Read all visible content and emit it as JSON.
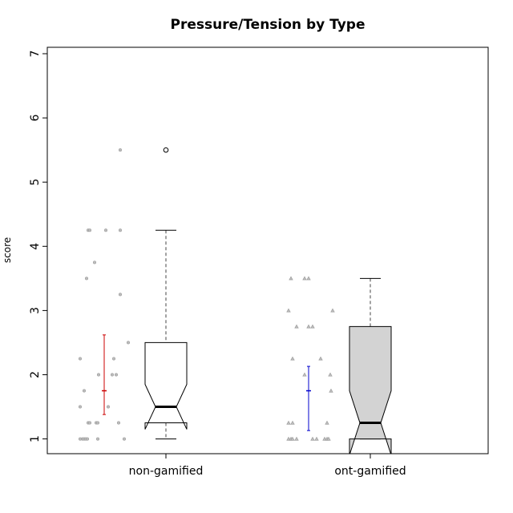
{
  "chart_data": {
    "type": "boxplot",
    "title": "Pressure/Tension by Type",
    "xlabel": "",
    "ylabel": "score",
    "ylim": [
      0.77,
      7.1
    ],
    "yticks": [
      1,
      2,
      3,
      4,
      5,
      6,
      7
    ],
    "grid": false,
    "categories": [
      "non-gamified",
      "ont-gamified"
    ],
    "series": [
      {
        "category": "non-gamified",
        "box_color": "#ffffff",
        "ci_color": "#cc0000",
        "point_marker": "circle",
        "boxplot": {
          "whisker_low": 1.0,
          "q1": 1.25,
          "median": 1.5,
          "q3": 2.5,
          "whisker_high": 4.25,
          "notch_low": 1.15,
          "notch_high": 1.85,
          "outliers": [
            5.5
          ]
        },
        "mean_ci": {
          "mean": 1.75,
          "low": 1.38,
          "high": 2.62
        },
        "points": [
          {
            "x": -0.3,
            "y": 1.0
          },
          {
            "x": -0.27,
            "y": 1.0
          },
          {
            "x": -0.25,
            "y": 1.0
          },
          {
            "x": -0.23,
            "y": 1.0
          },
          {
            "x": -0.21,
            "y": 1.0
          },
          {
            "x": -0.08,
            "y": 1.0
          },
          {
            "x": 0.25,
            "y": 1.0
          },
          {
            "x": -0.2,
            "y": 1.25
          },
          {
            "x": -0.18,
            "y": 1.25
          },
          {
            "x": -0.1,
            "y": 1.25
          },
          {
            "x": -0.08,
            "y": 1.25
          },
          {
            "x": 0.18,
            "y": 1.25
          },
          {
            "x": -0.3,
            "y": 1.5
          },
          {
            "x": 0.05,
            "y": 1.5
          },
          {
            "x": -0.25,
            "y": 1.75
          },
          {
            "x": -0.07,
            "y": 2.0
          },
          {
            "x": 0.1,
            "y": 2.0
          },
          {
            "x": 0.15,
            "y": 2.0
          },
          {
            "x": -0.3,
            "y": 2.25
          },
          {
            "x": 0.12,
            "y": 2.25
          },
          {
            "x": 0.3,
            "y": 2.5
          },
          {
            "x": 0.2,
            "y": 3.25
          },
          {
            "x": -0.22,
            "y": 3.5
          },
          {
            "x": -0.12,
            "y": 3.75
          },
          {
            "x": -0.2,
            "y": 4.25
          },
          {
            "x": -0.18,
            "y": 4.25
          },
          {
            "x": 0.02,
            "y": 4.25
          },
          {
            "x": 0.2,
            "y": 4.25
          },
          {
            "x": 0.2,
            "y": 5.5
          }
        ]
      },
      {
        "category": "ont-gamified",
        "box_color": "#d3d3d3",
        "ci_color": "#0000cc",
        "point_marker": "triangle",
        "boxplot": {
          "whisker_low": 1.0,
          "q1": 1.0,
          "median": 1.25,
          "q3": 2.75,
          "whisker_high": 3.5,
          "notch_low": 0.75,
          "notch_high": 1.75
        },
        "mean_ci": {
          "mean": 1.75,
          "low": 1.13,
          "high": 2.13
        },
        "points": [
          {
            "x": -0.25,
            "y": 1.0
          },
          {
            "x": -0.22,
            "y": 1.0
          },
          {
            "x": -0.2,
            "y": 1.0
          },
          {
            "x": -0.15,
            "y": 1.0
          },
          {
            "x": 0.05,
            "y": 1.0
          },
          {
            "x": 0.1,
            "y": 1.0
          },
          {
            "x": 0.2,
            "y": 1.0
          },
          {
            "x": 0.23,
            "y": 1.0
          },
          {
            "x": 0.25,
            "y": 1.0
          },
          {
            "x": -0.25,
            "y": 1.25
          },
          {
            "x": -0.2,
            "y": 1.25
          },
          {
            "x": 0.23,
            "y": 1.25
          },
          {
            "x": 0.28,
            "y": 1.75
          },
          {
            "x": -0.05,
            "y": 2.0
          },
          {
            "x": 0.27,
            "y": 2.0
          },
          {
            "x": -0.2,
            "y": 2.25
          },
          {
            "x": 0.15,
            "y": 2.25
          },
          {
            "x": -0.15,
            "y": 2.75
          },
          {
            "x": 0.0,
            "y": 2.75
          },
          {
            "x": 0.05,
            "y": 2.75
          },
          {
            "x": -0.25,
            "y": 3.0
          },
          {
            "x": 0.3,
            "y": 3.0
          },
          {
            "x": -0.22,
            "y": 3.5
          },
          {
            "x": -0.05,
            "y": 3.5
          },
          {
            "x": 0.0,
            "y": 3.5
          }
        ]
      }
    ]
  }
}
